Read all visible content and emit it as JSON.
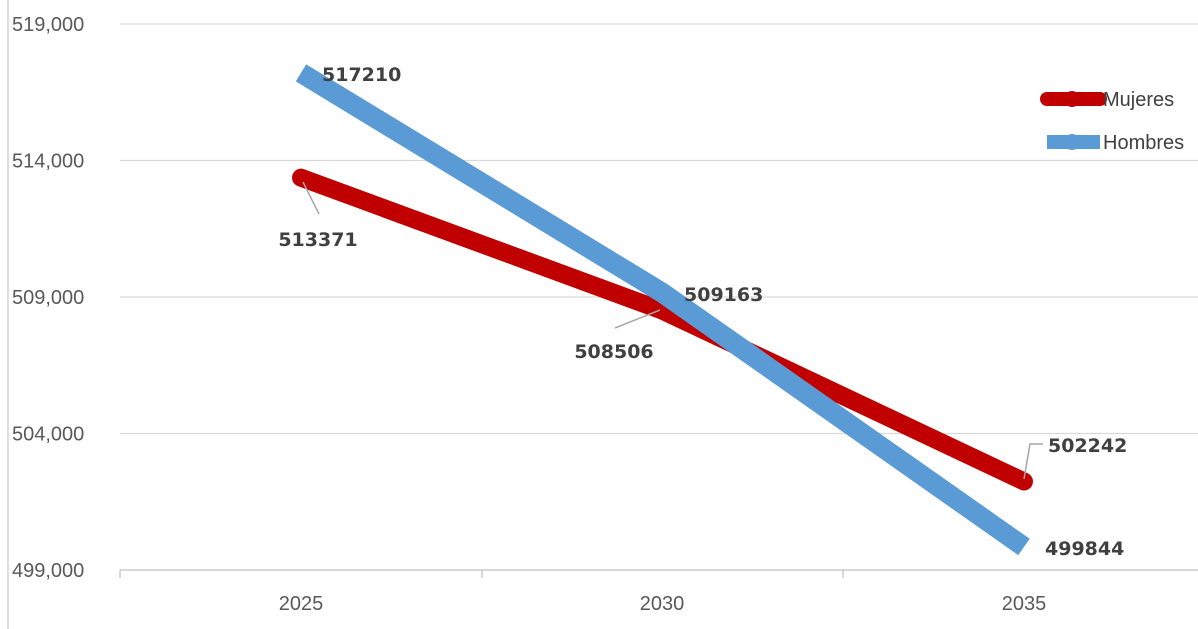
{
  "chart_data": {
    "type": "line",
    "title": "",
    "xlabel": "",
    "ylabel": "",
    "categories": [
      "2025",
      "2030",
      "2035"
    ],
    "ylim": [
      499000,
      519000
    ],
    "yticks": [
      499000,
      504000,
      509000,
      514000,
      519000
    ],
    "ytick_labels": [
      "499,000",
      "504,000",
      "509,000",
      "514,000",
      "519,000"
    ],
    "grid": true,
    "legend_position": "right",
    "series": [
      {
        "name": "Mujeres",
        "values": [
          513371,
          508506,
          502242
        ],
        "labels": [
          "513371",
          "508506",
          "502242"
        ],
        "color": "#c00000",
        "marker": "circle"
      },
      {
        "name": "Hombres",
        "values": [
          517210,
          509163,
          499844
        ],
        "labels": [
          "517210",
          "509163",
          "499844"
        ],
        "color": "#5b9bd5",
        "marker": "circle"
      }
    ]
  }
}
